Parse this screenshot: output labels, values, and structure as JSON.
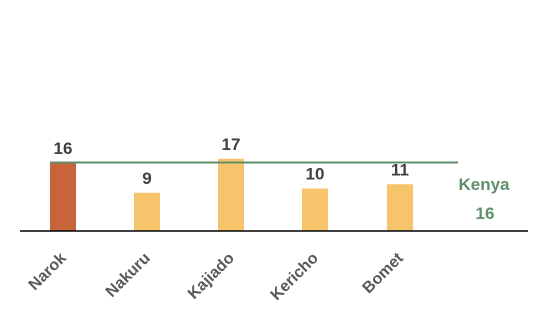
{
  "chart_data": {
    "type": "bar",
    "categories": [
      "Narok",
      "Nakuru",
      "Kajiado",
      "Kericho",
      "Bomet"
    ],
    "values": [
      16,
      9,
      17,
      10,
      11
    ],
    "data_labels": [
      "16",
      "9",
      "17",
      "10",
      "11"
    ],
    "bar_colors": [
      "#c8643c",
      "#f7c46c",
      "#f7c46c",
      "#f7c46c",
      "#f7c46c"
    ],
    "ylim": [
      0,
      80
    ],
    "grid": false,
    "reference_line": {
      "name": "Kenya",
      "value": 16,
      "value_label": "16",
      "color": "#5f8f6b"
    },
    "axis_color": "#000000"
  }
}
